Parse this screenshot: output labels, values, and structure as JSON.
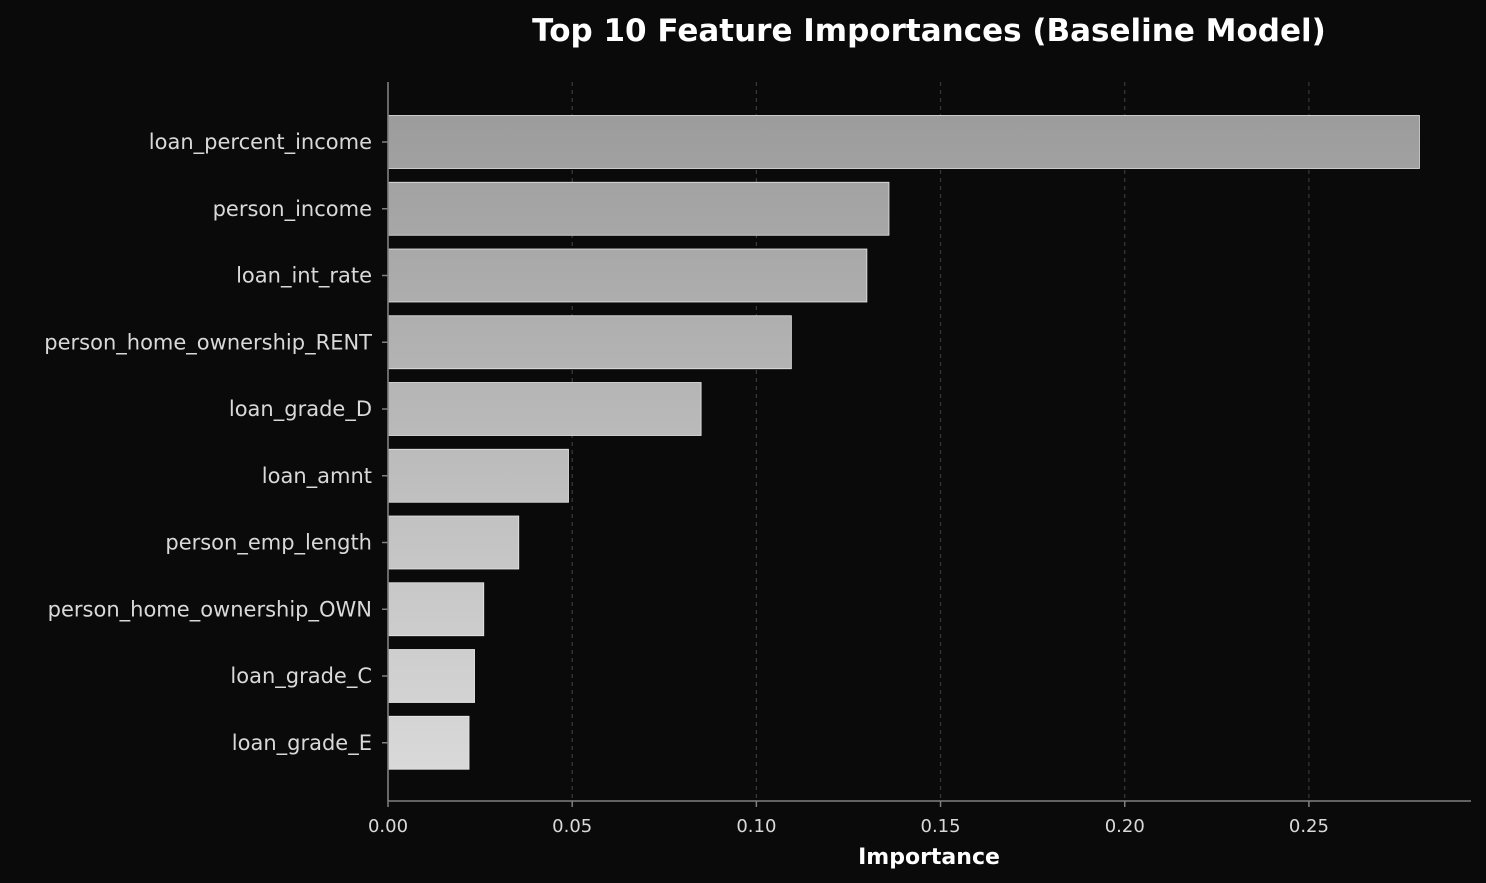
{
  "chart_data": {
    "type": "bar",
    "orientation": "horizontal",
    "title": "Top 10 Feature Importances (Baseline Model)",
    "xlabel": "Importance",
    "ylabel": "",
    "categories": [
      "loan_percent_income",
      "person_income",
      "loan_int_rate",
      "person_home_ownership_RENT",
      "loan_grade_D",
      "loan_amnt",
      "person_emp_length",
      "person_home_ownership_OWN",
      "loan_grade_C",
      "loan_grade_E"
    ],
    "values": [
      0.28,
      0.136,
      0.13,
      0.1095,
      0.085,
      0.049,
      0.0355,
      0.026,
      0.0235,
      0.022
    ],
    "xlim": [
      0,
      0.294
    ],
    "xticks": [
      0.0,
      0.05,
      0.1,
      0.15,
      0.2,
      0.25
    ],
    "xtick_labels": [
      "0.00",
      "0.05",
      "0.10",
      "0.15",
      "0.20",
      "0.25"
    ],
    "grid": "x-axis vertical dashed",
    "legend": "none",
    "colors": {
      "background": "#0a0a0a",
      "bar_top": "#9c9c9c",
      "bar_bottom": "#d9d9d9",
      "bar_edge": "#e8e8e8",
      "axis": "#808080",
      "grid": "#3a3a3a",
      "text": "#d9d9d9",
      "title": "#ffffff"
    }
  }
}
